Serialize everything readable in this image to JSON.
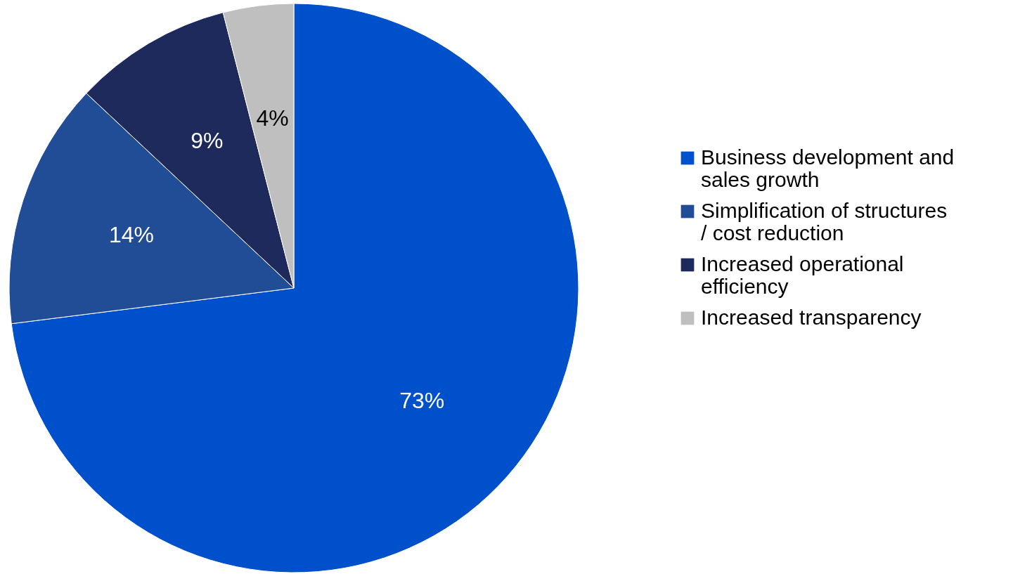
{
  "chart_data": {
    "type": "pie",
    "categories": [
      "Business development and sales growth",
      "Simplification of structures / cost reduction",
      "Increased operational efficiency",
      "Increased transparency"
    ],
    "values": [
      73,
      14,
      9,
      4
    ],
    "colors": [
      "#0050cc",
      "#214d96",
      "#1f2a5c",
      "#bfbfbf"
    ],
    "value_labels": [
      "73%",
      "14%",
      "9%",
      "4%"
    ],
    "legend": "right"
  }
}
